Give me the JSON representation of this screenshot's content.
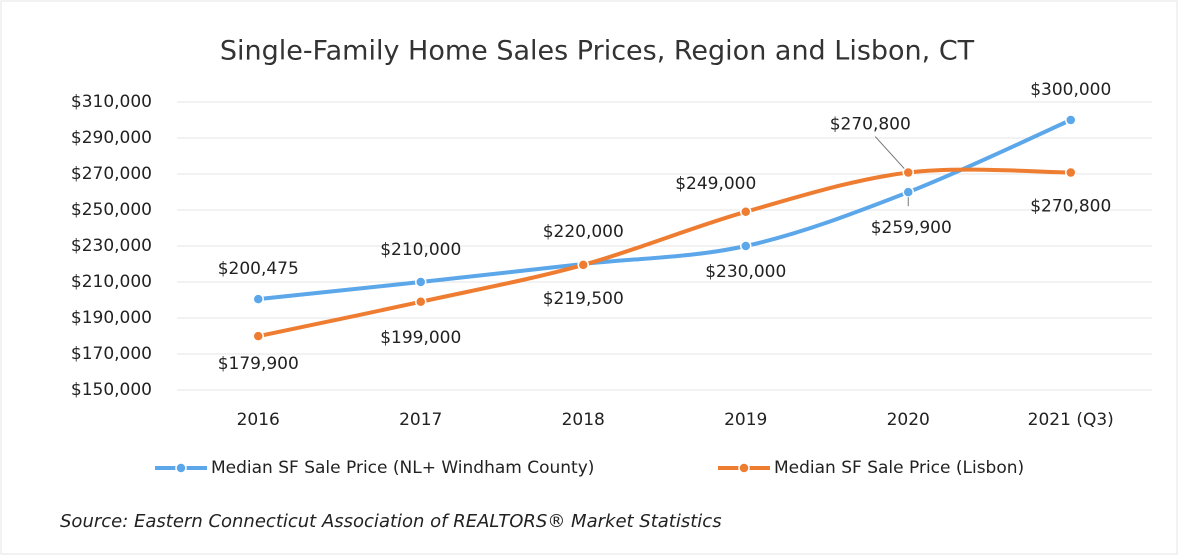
{
  "chart_data": {
    "type": "line",
    "title": "Single-Family Home Sales Prices, Region and Lisbon, CT",
    "categories": [
      "2016",
      "2017",
      "2018",
      "2019",
      "2020",
      "2021 (Q3)"
    ],
    "series": [
      {
        "name": "Median SF Sale Price (NL+ Windham County)",
        "color": "#5ba7ea",
        "values": [
          200475,
          210000,
          220000,
          230000,
          259900,
          300000
        ],
        "value_labels": [
          "$200,475",
          "$210,000",
          "$220,000",
          "$230,000",
          "$259,900",
          "$300,000"
        ]
      },
      {
        "name": "Median SF Sale Price (Lisbon)",
        "color": "#ee7d31",
        "values": [
          179900,
          199000,
          219500,
          249000,
          270800,
          270800
        ],
        "value_labels": [
          "$179,900",
          "$199,000",
          "$219,500",
          "$249,000",
          "$270,800",
          "$270,800"
        ]
      }
    ],
    "ylim": [
      150000,
      310000
    ],
    "yticks": [
      {
        "value": 150000,
        "label": "$150,000"
      },
      {
        "value": 170000,
        "label": "$170,000"
      },
      {
        "value": 190000,
        "label": "$190,000"
      },
      {
        "value": 210000,
        "label": "$210,000"
      },
      {
        "value": 230000,
        "label": "$230,000"
      },
      {
        "value": 250000,
        "label": "$250,000"
      },
      {
        "value": 270000,
        "label": "$270,000"
      },
      {
        "value": 290000,
        "label": "$290,000"
      },
      {
        "value": 310000,
        "label": "$310,000"
      }
    ],
    "grid": true,
    "legend": "bottom",
    "source": "Source: Eastern Connecticut Association of REALTORS® Market Statistics"
  }
}
